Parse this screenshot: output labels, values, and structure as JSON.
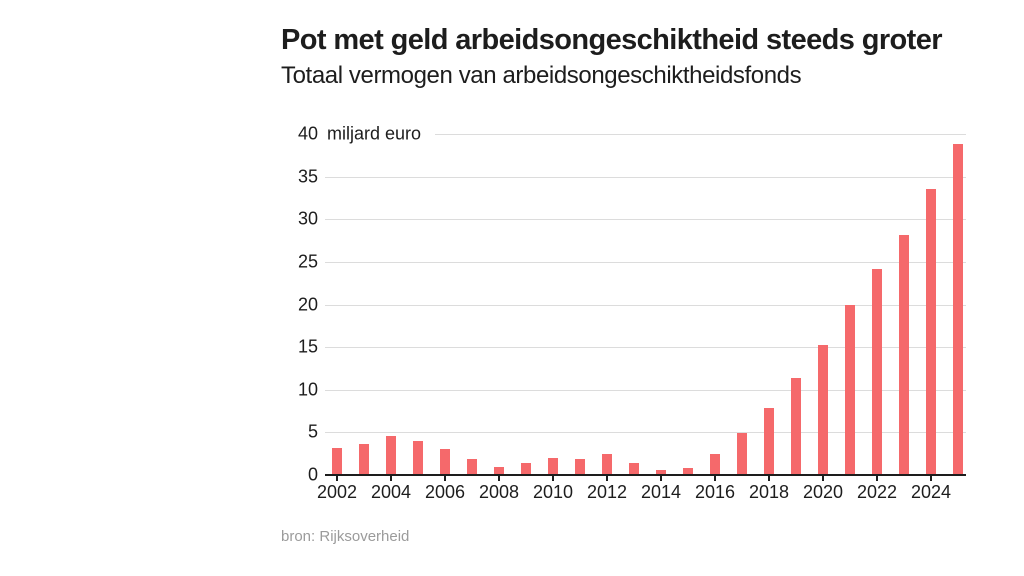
{
  "header": {
    "title": "Pot met geld arbeidsongeschiktheid steeds groter",
    "subtitle": "Totaal vermogen van arbeidsongeschiktheidsfonds"
  },
  "footer": {
    "source": "bron: Rijksoverheid"
  },
  "chart_data": {
    "type": "bar",
    "title": "Pot met geld arbeidsongeschiktheid steeds groter",
    "subtitle": "Totaal vermogen van arbeidsongeschiktheidsfonds",
    "unit_label": "miljard euro",
    "categories": [
      2002,
      2003,
      2004,
      2005,
      2006,
      2007,
      2008,
      2009,
      2010,
      2011,
      2012,
      2013,
      2014,
      2015,
      2016,
      2017,
      2018,
      2019,
      2020,
      2021,
      2022,
      2023,
      2024,
      2025
    ],
    "values": [
      3.2,
      3.6,
      4.6,
      4.0,
      3.1,
      1.9,
      0.9,
      1.4,
      2.0,
      1.9,
      2.5,
      1.4,
      0.6,
      0.8,
      2.5,
      4.9,
      7.9,
      11.4,
      15.2,
      20.0,
      24.2,
      28.2,
      33.6,
      38.8
    ],
    "xlabel": "",
    "ylabel": "miljard euro",
    "ylim": [
      0,
      40
    ],
    "ytick_step": 5,
    "xtick_labels": [
      2002,
      2004,
      2006,
      2008,
      2010,
      2012,
      2014,
      2016,
      2018,
      2020,
      2022,
      2024
    ],
    "grid": true,
    "legend_position": "none",
    "source": "bron: Rijksoverheid",
    "colors": {
      "bar": "#f5696b",
      "grid": "#dcdcdc",
      "axis": "#1d1d1d",
      "text": "#1d1d1d",
      "source_text": "#9b9b9b"
    }
  }
}
